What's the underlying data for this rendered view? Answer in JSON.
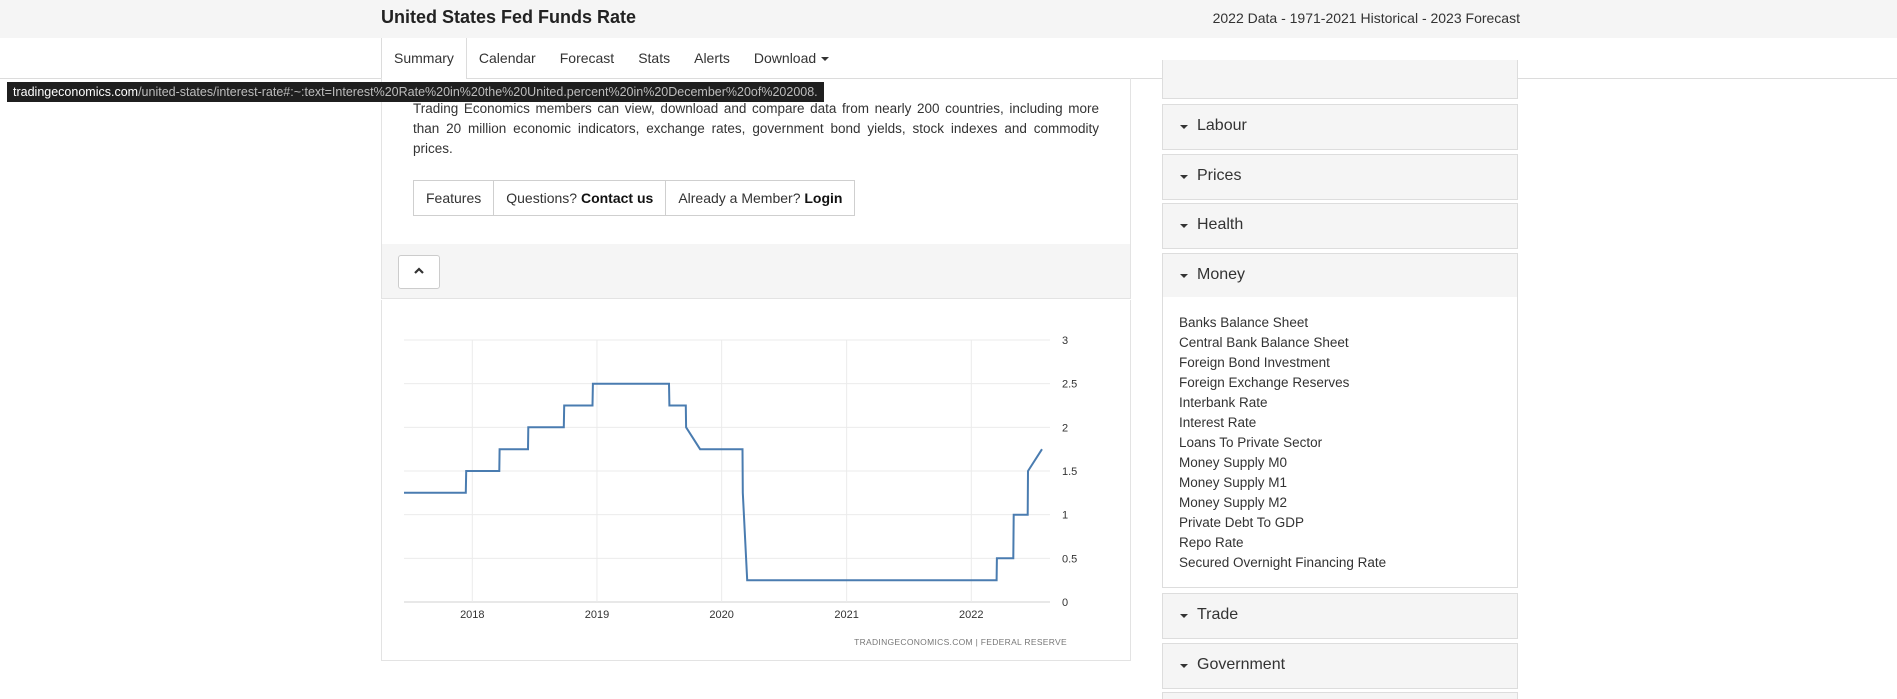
{
  "header": {
    "title": "United States Fed Funds Rate",
    "subtitle": "2022 Data - 1971-2021 Historical - 2023 Forecast"
  },
  "nav": {
    "tabs": [
      {
        "label": "Summary",
        "active": true
      },
      {
        "label": "Calendar"
      },
      {
        "label": "Forecast"
      },
      {
        "label": "Stats"
      },
      {
        "label": "Alerts"
      },
      {
        "label": "Download",
        "dropdown": true
      }
    ]
  },
  "status_url": {
    "domain": "tradingeconomics.com",
    "path": "/united-states/interest-rate#:~:text=Interest%20Rate%20in%20the%20United.percent%20in%20December%20of%202008."
  },
  "promo": {
    "text": "Trading Economics members can view, download and compare data from nearly 200 countries, including more than 20 million economic indicators, exchange rates, government bond yields, stock indexes and commodity prices.",
    "features_label": "Features",
    "questions_prefix": "Questions?",
    "contact_label": "Contact us",
    "member_prefix": "Already a Member?",
    "login_label": "Login"
  },
  "icons": {
    "collapse": "chevron-up-icon",
    "dropdown": "caret-down-icon"
  },
  "colors": {
    "line": "#4a7cb0",
    "panel_bg": "#f5f5f5",
    "grid": "#ebebeb"
  },
  "chart_data": {
    "type": "line",
    "series": [
      {
        "values": [
          {
            "x": "2017-06-15",
            "y": 1.25
          },
          {
            "x": "2017-12-13",
            "y": 1.25
          },
          {
            "x": "2017-12-14",
            "y": 1.5
          },
          {
            "x": "2018-03-21",
            "y": 1.5
          },
          {
            "x": "2018-03-22",
            "y": 1.75
          },
          {
            "x": "2018-06-13",
            "y": 1.75
          },
          {
            "x": "2018-06-14",
            "y": 2.0
          },
          {
            "x": "2018-09-26",
            "y": 2.0
          },
          {
            "x": "2018-09-27",
            "y": 2.25
          },
          {
            "x": "2018-12-19",
            "y": 2.25
          },
          {
            "x": "2018-12-20",
            "y": 2.5
          },
          {
            "x": "2019-07-31",
            "y": 2.5
          },
          {
            "x": "2019-08-01",
            "y": 2.25
          },
          {
            "x": "2019-09-18",
            "y": 2.25
          },
          {
            "x": "2019-09-19",
            "y": 2.0
          },
          {
            "x": "2019-10-30",
            "y": 1.75
          },
          {
            "x": "2020-03-02",
            "y": 1.75
          },
          {
            "x": "2020-03-03",
            "y": 1.25
          },
          {
            "x": "2020-03-16",
            "y": 0.25
          },
          {
            "x": "2022-03-16",
            "y": 0.25
          },
          {
            "x": "2022-03-17",
            "y": 0.5
          },
          {
            "x": "2022-05-04",
            "y": 0.5
          },
          {
            "x": "2022-05-05",
            "y": 1.0
          },
          {
            "x": "2022-06-15",
            "y": 1.0
          },
          {
            "x": "2022-06-16",
            "y": 1.5
          },
          {
            "x": "2022-07-27",
            "y": 1.75
          }
        ]
      }
    ],
    "x_ticks": [
      "2018",
      "2019",
      "2020",
      "2021",
      "2022"
    ],
    "y_ticks": [
      "0",
      "0.5",
      "1",
      "1.5",
      "2",
      "2.5",
      "3"
    ],
    "ylim": [
      0,
      3
    ],
    "xlim": [
      "2017-06-15",
      "2022-07-27"
    ],
    "y_axis_side": "right",
    "grid": true,
    "source": "TRADINGECONOMICS.COM  |  FEDERAL RESERVE"
  },
  "sidebar": {
    "panels": [
      {
        "label": "Labour"
      },
      {
        "label": "Prices"
      },
      {
        "label": "Health"
      },
      {
        "label": "Money",
        "expanded": true
      },
      {
        "label": "Trade"
      },
      {
        "label": "Government"
      }
    ],
    "money_items": [
      "Banks Balance Sheet",
      "Central Bank Balance Sheet",
      "Foreign Bond Investment",
      "Foreign Exchange Reserves",
      "Interbank Rate",
      "Interest Rate",
      "Loans To Private Sector",
      "Money Supply M0",
      "Money Supply M1",
      "Money Supply M2",
      "Private Debt To GDP",
      "Repo Rate",
      "Secured Overnight Financing Rate"
    ]
  }
}
